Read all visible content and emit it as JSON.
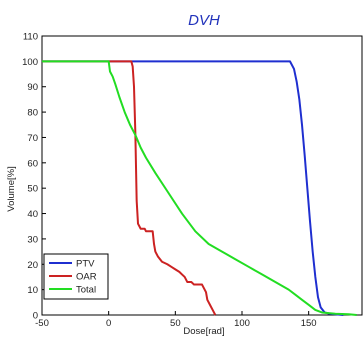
{
  "chart_data": {
    "type": "line",
    "title": "DVH",
    "xlabel": "Dose[rad]",
    "ylabel": "Volume[%]",
    "xlim": [
      -50,
      190
    ],
    "ylim": [
      0,
      110
    ],
    "xticks": [
      -50,
      0,
      50,
      100,
      150
    ],
    "yticks": [
      0,
      10,
      20,
      30,
      40,
      50,
      60,
      70,
      80,
      90,
      100,
      110
    ],
    "grid": false,
    "legend_position": "bottom-left",
    "series": [
      {
        "name": "PTV",
        "color": "#1f2fd0",
        "points": [
          [
            -50,
            100
          ],
          [
            136,
            100
          ],
          [
            139,
            97
          ],
          [
            141,
            92
          ],
          [
            143,
            85
          ],
          [
            145,
            75
          ],
          [
            147,
            63
          ],
          [
            149,
            50
          ],
          [
            151,
            37
          ],
          [
            153,
            25
          ],
          [
            155,
            15
          ],
          [
            157,
            7
          ],
          [
            159,
            3
          ],
          [
            162,
            1
          ],
          [
            166,
            0.5
          ],
          [
            176,
            0
          ]
        ]
      },
      {
        "name": "OAR",
        "color": "#cc2222",
        "points": [
          [
            -50,
            100
          ],
          [
            17,
            100
          ],
          [
            18,
            98
          ],
          [
            19,
            90
          ],
          [
            20,
            72
          ],
          [
            21,
            45
          ],
          [
            22,
            36
          ],
          [
            24,
            34
          ],
          [
            27,
            34
          ],
          [
            28,
            33
          ],
          [
            33,
            33
          ],
          [
            34,
            28
          ],
          [
            35,
            25
          ],
          [
            37,
            23
          ],
          [
            40,
            21
          ],
          [
            44,
            20
          ],
          [
            47,
            19
          ],
          [
            50,
            18
          ],
          [
            53,
            17
          ],
          [
            55,
            16
          ],
          [
            57,
            15
          ],
          [
            59,
            13
          ],
          [
            62,
            13
          ],
          [
            64,
            12
          ],
          [
            70,
            12
          ],
          [
            73,
            9
          ],
          [
            74,
            6
          ],
          [
            76,
            4
          ],
          [
            78,
            2
          ],
          [
            80,
            0
          ]
        ]
      },
      {
        "name": "Total",
        "color": "#22dd22",
        "points": [
          [
            -50,
            100
          ],
          [
            0,
            100
          ],
          [
            1,
            96
          ],
          [
            3,
            94
          ],
          [
            5,
            91
          ],
          [
            8,
            86
          ],
          [
            12,
            80
          ],
          [
            16,
            75
          ],
          [
            20,
            71
          ],
          [
            24,
            66
          ],
          [
            28,
            62
          ],
          [
            35,
            56
          ],
          [
            45,
            48
          ],
          [
            55,
            40
          ],
          [
            65,
            33
          ],
          [
            75,
            28
          ],
          [
            85,
            25
          ],
          [
            95,
            22
          ],
          [
            105,
            19
          ],
          [
            115,
            16
          ],
          [
            125,
            13
          ],
          [
            135,
            10
          ],
          [
            140,
            8
          ],
          [
            145,
            6
          ],
          [
            150,
            4
          ],
          [
            155,
            2
          ],
          [
            160,
            1
          ],
          [
            170,
            0.5
          ],
          [
            180,
            0.3
          ],
          [
            186,
            0
          ]
        ]
      }
    ]
  }
}
